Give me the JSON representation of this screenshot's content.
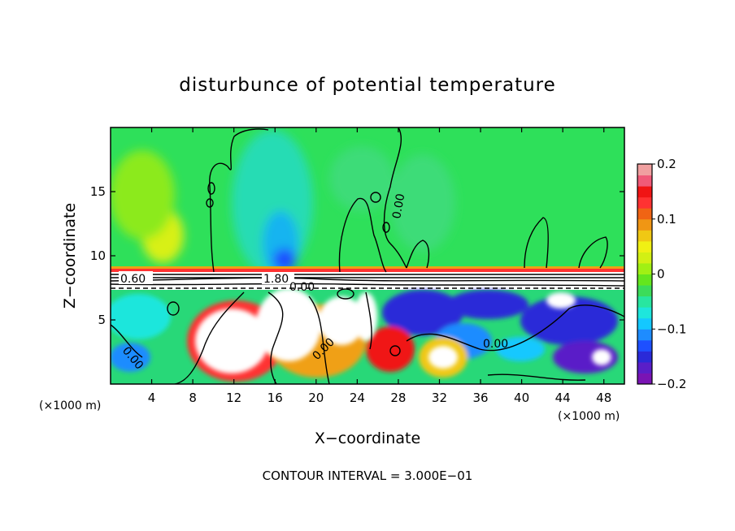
{
  "chart_data": {
    "type": "heatmap",
    "title": "disturbunce of potential temperature",
    "xlabel": "X−coordinate",
    "ylabel": "Z−coordinate",
    "x_unit": "(×1000 m)",
    "x_unit_right": "(×1000 m)",
    "x_ticks": [
      "4",
      "8",
      "12",
      "16",
      "20",
      "24",
      "28",
      "32",
      "36",
      "40",
      "44",
      "48"
    ],
    "y_ticks": [
      "5",
      "10",
      "15"
    ],
    "xlim": [
      0,
      50
    ],
    "ylim": [
      0,
      20
    ],
    "contour_interval": "CONTOUR INTERVAL = 3.000E−01",
    "contour_labels": [
      "0.60",
      "1.80",
      "0.00",
      "0.00",
      "0.00",
      "0.00",
      "0.00"
    ],
    "colorbar": {
      "range": [
        -0.2,
        0.2
      ],
      "tick_labels": [
        "0.2",
        "0.1",
        "0",
        "−0.1",
        "−0.2"
      ],
      "colors": [
        "#7a14b4",
        "#5a1ec8",
        "#2a2ad8",
        "#1e50ff",
        "#1e8cff",
        "#14c8ff",
        "#1ee6dc",
        "#28e6a0",
        "#3cdc5a",
        "#64e61e",
        "#a0f014",
        "#d2f014",
        "#f0f014",
        "#f0c814",
        "#f09614",
        "#f06414",
        "#ff3232",
        "#f01414",
        "#f05a78",
        "#f0a0a0"
      ]
    },
    "grid": false
  }
}
